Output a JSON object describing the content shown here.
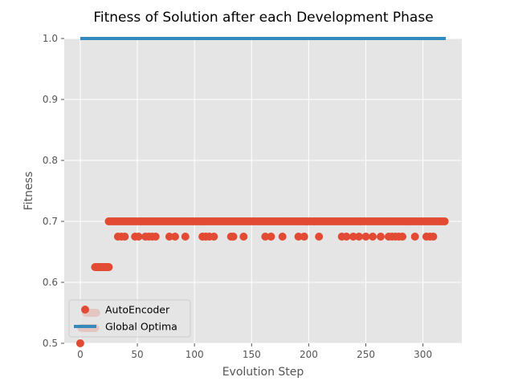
{
  "chart_data": {
    "type": "scatter",
    "title": "Fitness of Solution after each Development Phase",
    "xlabel": "Evolution Step",
    "ylabel": "Fitness",
    "xlim": [
      -14,
      334
    ],
    "ylim": [
      0.5,
      1.0
    ],
    "xticks": [
      0,
      50,
      100,
      150,
      200,
      250,
      300
    ],
    "yticks": [
      0.5,
      0.6,
      0.7,
      0.8,
      0.9,
      1.0
    ],
    "grid": true,
    "legend_position": "lower-left",
    "colors": {
      "autoencoder": "#E24A33",
      "global_optima": "#348ABD",
      "plot_background": "#E5E5E5",
      "grid": "#FFFFFF"
    },
    "series": [
      {
        "name": "AutoEncoder",
        "kind": "scatter",
        "points": [
          [
            0,
            0.5
          ],
          [
            1,
            0.525
          ],
          [
            2,
            0.525
          ],
          [
            3,
            0.525
          ],
          [
            4,
            0.525
          ],
          [
            5,
            0.525
          ],
          [
            6,
            0.525
          ],
          [
            7,
            0.525
          ],
          [
            8,
            0.525
          ],
          [
            9,
            0.525
          ],
          [
            10,
            0.525
          ],
          [
            11,
            0.525
          ],
          [
            12,
            0.525
          ],
          [
            13,
            0.525
          ],
          [
            5,
            0.55
          ],
          [
            6,
            0.55
          ],
          [
            7,
            0.55
          ],
          [
            8,
            0.55
          ],
          [
            9,
            0.55
          ],
          [
            10,
            0.55
          ],
          [
            11,
            0.55
          ],
          [
            12,
            0.55
          ],
          [
            13,
            0.55
          ],
          [
            14,
            0.55
          ],
          [
            13,
            0.625
          ],
          [
            14,
            0.625
          ],
          [
            15,
            0.625
          ],
          [
            16,
            0.625
          ],
          [
            17,
            0.625
          ],
          [
            18,
            0.625
          ],
          [
            19,
            0.625
          ],
          [
            20,
            0.625
          ],
          [
            21,
            0.625
          ],
          [
            22,
            0.625
          ],
          [
            23,
            0.625
          ],
          [
            24,
            0.625
          ],
          [
            25,
            0.625
          ],
          [
            25,
            0.7
          ],
          [
            27,
            0.7
          ],
          [
            29,
            0.7
          ],
          [
            31,
            0.7
          ],
          [
            33,
            0.7
          ],
          [
            35,
            0.7
          ],
          [
            37,
            0.7
          ],
          [
            39,
            0.7
          ],
          [
            41,
            0.7
          ],
          [
            43,
            0.7
          ],
          [
            45,
            0.7
          ],
          [
            47,
            0.7
          ],
          [
            49,
            0.7
          ],
          [
            51,
            0.7
          ],
          [
            53,
            0.7
          ],
          [
            55,
            0.7
          ],
          [
            57,
            0.7
          ],
          [
            59,
            0.7
          ],
          [
            61,
            0.7
          ],
          [
            63,
            0.7
          ],
          [
            65,
            0.7
          ],
          [
            67,
            0.7
          ],
          [
            69,
            0.7
          ],
          [
            71,
            0.7
          ],
          [
            73,
            0.7
          ],
          [
            75,
            0.7
          ],
          [
            77,
            0.7
          ],
          [
            79,
            0.7
          ],
          [
            81,
            0.7
          ],
          [
            83,
            0.7
          ],
          [
            85,
            0.7
          ],
          [
            87,
            0.7
          ],
          [
            89,
            0.7
          ],
          [
            91,
            0.7
          ],
          [
            93,
            0.7
          ],
          [
            95,
            0.7
          ],
          [
            97,
            0.7
          ],
          [
            99,
            0.7
          ],
          [
            101,
            0.7
          ],
          [
            103,
            0.7
          ],
          [
            105,
            0.7
          ],
          [
            107,
            0.7
          ],
          [
            109,
            0.7
          ],
          [
            111,
            0.7
          ],
          [
            113,
            0.7
          ],
          [
            115,
            0.7
          ],
          [
            117,
            0.7
          ],
          [
            119,
            0.7
          ],
          [
            121,
            0.7
          ],
          [
            123,
            0.7
          ],
          [
            125,
            0.7
          ],
          [
            127,
            0.7
          ],
          [
            129,
            0.7
          ],
          [
            131,
            0.7
          ],
          [
            133,
            0.7
          ],
          [
            135,
            0.7
          ],
          [
            137,
            0.7
          ],
          [
            139,
            0.7
          ],
          [
            141,
            0.7
          ],
          [
            143,
            0.7
          ],
          [
            145,
            0.7
          ],
          [
            147,
            0.7
          ],
          [
            149,
            0.7
          ],
          [
            151,
            0.7
          ],
          [
            153,
            0.7
          ],
          [
            155,
            0.7
          ],
          [
            157,
            0.7
          ],
          [
            159,
            0.7
          ],
          [
            161,
            0.7
          ],
          [
            163,
            0.7
          ],
          [
            165,
            0.7
          ],
          [
            167,
            0.7
          ],
          [
            169,
            0.7
          ],
          [
            171,
            0.7
          ],
          [
            173,
            0.7
          ],
          [
            175,
            0.7
          ],
          [
            177,
            0.7
          ],
          [
            179,
            0.7
          ],
          [
            181,
            0.7
          ],
          [
            183,
            0.7
          ],
          [
            185,
            0.7
          ],
          [
            187,
            0.7
          ],
          [
            189,
            0.7
          ],
          [
            191,
            0.7
          ],
          [
            193,
            0.7
          ],
          [
            195,
            0.7
          ],
          [
            197,
            0.7
          ],
          [
            199,
            0.7
          ],
          [
            201,
            0.7
          ],
          [
            203,
            0.7
          ],
          [
            205,
            0.7
          ],
          [
            207,
            0.7
          ],
          [
            209,
            0.7
          ],
          [
            211,
            0.7
          ],
          [
            213,
            0.7
          ],
          [
            215,
            0.7
          ],
          [
            217,
            0.7
          ],
          [
            219,
            0.7
          ],
          [
            221,
            0.7
          ],
          [
            223,
            0.7
          ],
          [
            225,
            0.7
          ],
          [
            227,
            0.7
          ],
          [
            229,
            0.7
          ],
          [
            231,
            0.7
          ],
          [
            233,
            0.7
          ],
          [
            235,
            0.7
          ],
          [
            237,
            0.7
          ],
          [
            239,
            0.7
          ],
          [
            241,
            0.7
          ],
          [
            243,
            0.7
          ],
          [
            245,
            0.7
          ],
          [
            247,
            0.7
          ],
          [
            249,
            0.7
          ],
          [
            251,
            0.7
          ],
          [
            253,
            0.7
          ],
          [
            255,
            0.7
          ],
          [
            257,
            0.7
          ],
          [
            259,
            0.7
          ],
          [
            261,
            0.7
          ],
          [
            263,
            0.7
          ],
          [
            265,
            0.7
          ],
          [
            267,
            0.7
          ],
          [
            269,
            0.7
          ],
          [
            271,
            0.7
          ],
          [
            273,
            0.7
          ],
          [
            275,
            0.7
          ],
          [
            277,
            0.7
          ],
          [
            279,
            0.7
          ],
          [
            281,
            0.7
          ],
          [
            283,
            0.7
          ],
          [
            285,
            0.7
          ],
          [
            287,
            0.7
          ],
          [
            289,
            0.7
          ],
          [
            291,
            0.7
          ],
          [
            293,
            0.7
          ],
          [
            295,
            0.7
          ],
          [
            297,
            0.7
          ],
          [
            299,
            0.7
          ],
          [
            301,
            0.7
          ],
          [
            303,
            0.7
          ],
          [
            305,
            0.7
          ],
          [
            307,
            0.7
          ],
          [
            309,
            0.7
          ],
          [
            311,
            0.7
          ],
          [
            313,
            0.7
          ],
          [
            315,
            0.7
          ],
          [
            317,
            0.7
          ],
          [
            319,
            0.7
          ],
          [
            33,
            0.675
          ],
          [
            36,
            0.675
          ],
          [
            39,
            0.675
          ],
          [
            48,
            0.675
          ],
          [
            51,
            0.675
          ],
          [
            57,
            0.675
          ],
          [
            60,
            0.675
          ],
          [
            63,
            0.675
          ],
          [
            66,
            0.675
          ],
          [
            78,
            0.675
          ],
          [
            83,
            0.675
          ],
          [
            92,
            0.675
          ],
          [
            107,
            0.675
          ],
          [
            110,
            0.675
          ],
          [
            113,
            0.675
          ],
          [
            117,
            0.675
          ],
          [
            132,
            0.675
          ],
          [
            134,
            0.675
          ],
          [
            143,
            0.675
          ],
          [
            162,
            0.675
          ],
          [
            167,
            0.675
          ],
          [
            177,
            0.675
          ],
          [
            191,
            0.675
          ],
          [
            196,
            0.675
          ],
          [
            209,
            0.675
          ],
          [
            229,
            0.675
          ],
          [
            233,
            0.675
          ],
          [
            239,
            0.675
          ],
          [
            244,
            0.675
          ],
          [
            250,
            0.675
          ],
          [
            256,
            0.675
          ],
          [
            263,
            0.675
          ],
          [
            270,
            0.675
          ],
          [
            273,
            0.675
          ],
          [
            276,
            0.675
          ],
          [
            279,
            0.675
          ],
          [
            282,
            0.675
          ],
          [
            293,
            0.675
          ],
          [
            303,
            0.675
          ],
          [
            306,
            0.675
          ],
          [
            309,
            0.675
          ]
        ]
      },
      {
        "name": "Global Optima",
        "kind": "line",
        "x": [
          0,
          320
        ],
        "y": [
          1.0,
          1.0
        ]
      }
    ]
  }
}
